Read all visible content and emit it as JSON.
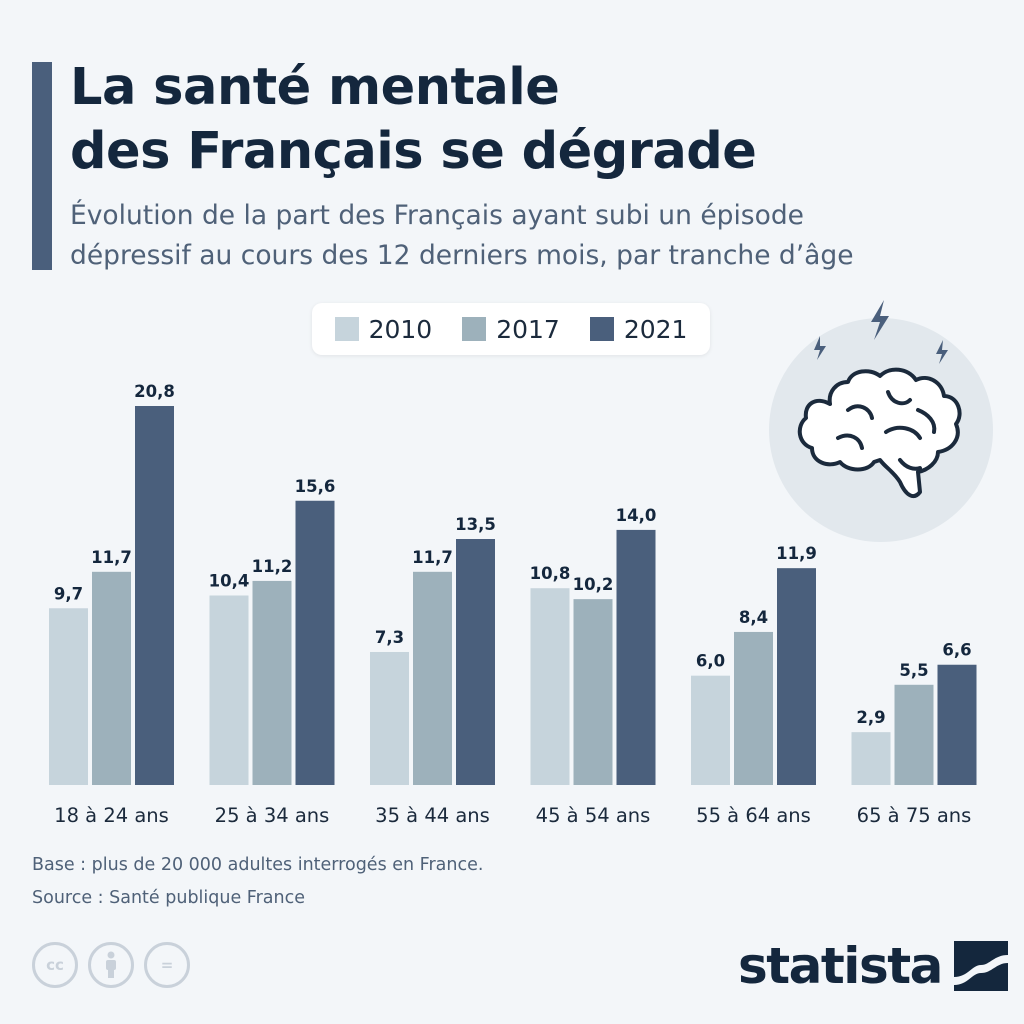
{
  "header": {
    "title_line1": "La santé mentale",
    "title_line2": "des Français se dégrade",
    "subtitle_line1": "Évolution de la part des Français ayant subi un épisode",
    "subtitle_line2": "dépressif au cours des 12 derniers mois, par tranche d’âge"
  },
  "legend": [
    {
      "label": "2010",
      "color": "#c6d4dc"
    },
    {
      "label": "2017",
      "color": "#9db1bb"
    },
    {
      "label": "2021",
      "color": "#4a5f7c"
    }
  ],
  "chart_data": {
    "type": "bar",
    "categories": [
      "18 à 24 ans",
      "25 à 34 ans",
      "35 à 44 ans",
      "45 à 54 ans",
      "55 à 64 ans",
      "65 à 75 ans"
    ],
    "series": [
      {
        "name": "2010",
        "color": "#c6d4dc",
        "values": [
          9.7,
          10.4,
          7.3,
          10.8,
          6.0,
          2.9
        ],
        "labels": [
          "9,7",
          "10,4",
          "7,3",
          "10,8",
          "6,0",
          "2,9"
        ]
      },
      {
        "name": "2017",
        "color": "#9db1bb",
        "values": [
          11.7,
          11.2,
          11.7,
          10.2,
          8.4,
          5.5
        ],
        "labels": [
          "11,7",
          "11,2",
          "11,7",
          "10,2",
          "8,4",
          "5,5"
        ]
      },
      {
        "name": "2021",
        "color": "#4a5f7c",
        "values": [
          20.8,
          15.6,
          13.5,
          14.0,
          11.9,
          6.6
        ],
        "labels": [
          "20,8",
          "15,6",
          "13,5",
          "14,0",
          "11,9",
          "6,6"
        ]
      }
    ],
    "title": "La santé mentale des Français se dégrade",
    "xlabel": "",
    "ylabel": "",
    "ylim": [
      0,
      20.8
    ],
    "grid": false,
    "legend_position": "top-center"
  },
  "illustration": {
    "icon": "brain-icon"
  },
  "footer": {
    "note": "Base : plus de 20 000 adultes interrogés en France.",
    "source": "Source : Santé publique France",
    "license_icons": [
      "cc-icon",
      "attribution-icon",
      "no-derivatives-icon"
    ],
    "license_cc_text": "cc",
    "license_nd_text": "=",
    "brand": "statista"
  }
}
